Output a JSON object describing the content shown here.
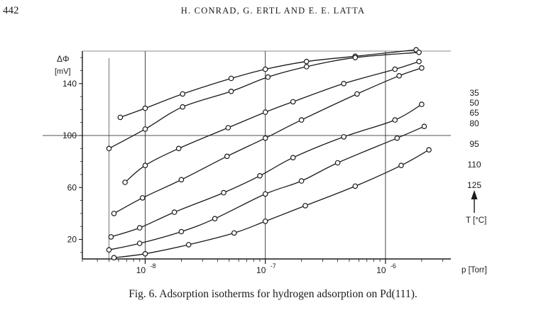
{
  "page_number": "442",
  "running_head": "H. CONRAD, G. ERTL AND E. E. LATTA",
  "caption": "Fig. 6.   Adsorption isotherms for hydrogen adsorption on Pd(111).",
  "chart_data": {
    "type": "line",
    "title": "",
    "ylabel": "ΔΦ",
    "yunit": "[mV]",
    "xlabel": "p [Torr]",
    "x_scale": "log",
    "xlim": [
      3e-09,
      3.5e-06
    ],
    "ylim": [
      5,
      165
    ],
    "yticks": [
      20,
      60,
      100,
      140
    ],
    "xticks": [
      {
        "value": 1e-08,
        "base": "10",
        "exp": "-8"
      },
      {
        "value": 1e-07,
        "base": "10",
        "exp": "-7"
      },
      {
        "value": 1e-06,
        "base": "10",
        "exp": "-6"
      }
    ],
    "grid": "major decades and y = 100 mV",
    "legend_title": "T [°C]",
    "legend_placement": "right",
    "series": [
      {
        "name": "35",
        "x": [
          6.2e-09,
          1e-08,
          2.05e-08,
          5.2e-08,
          1e-07,
          2.2e-07,
          5.6e-07,
          1.8e-06
        ],
        "y": [
          114,
          121,
          132,
          144,
          151,
          157,
          161,
          166
        ]
      },
      {
        "name": "50",
        "x": [
          5e-09,
          1e-08,
          2.05e-08,
          5.2e-08,
          1.05e-07,
          2.2e-07,
          5.6e-07,
          1.9e-06
        ],
        "y": [
          90,
          105,
          122,
          134,
          145,
          153,
          160,
          164
        ]
      },
      {
        "name": "65",
        "x": [
          6.8e-09,
          1e-08,
          1.9e-08,
          4.9e-08,
          1e-07,
          1.7e-07,
          4.5e-07,
          1.2e-06,
          1.9e-06
        ],
        "y": [
          64,
          77,
          90,
          106,
          118,
          126,
          140,
          151,
          157
        ]
      },
      {
        "name": "80",
        "x": [
          5.5e-09,
          9.5e-09,
          2e-08,
          4.8e-08,
          1e-07,
          2e-07,
          5.8e-07,
          1.3e-06,
          2e-06
        ],
        "y": [
          40,
          52,
          66,
          84,
          98,
          112,
          132,
          146,
          152
        ]
      },
      {
        "name": "95",
        "x": [
          5.2e-09,
          9e-09,
          1.75e-08,
          4.5e-08,
          9e-08,
          1.7e-07,
          4.5e-07,
          1.2e-06,
          2e-06
        ],
        "y": [
          22,
          29,
          41,
          56,
          69,
          83,
          99,
          112,
          124
        ]
      },
      {
        "name": "110",
        "x": [
          5e-09,
          9e-09,
          2e-08,
          3.8e-08,
          1e-07,
          2e-07,
          4e-07,
          1.25e-06,
          2.1e-06
        ],
        "y": [
          12,
          17,
          26,
          36,
          55,
          65,
          79,
          98,
          107
        ]
      },
      {
        "name": "125",
        "x": [
          5.5e-09,
          1e-08,
          2.3e-08,
          5.5e-08,
          1e-07,
          2.15e-07,
          5.6e-07,
          1.35e-06,
          2.3e-06
        ],
        "y": [
          6,
          9,
          16,
          25,
          34,
          46,
          61,
          77,
          89
        ]
      }
    ]
  }
}
